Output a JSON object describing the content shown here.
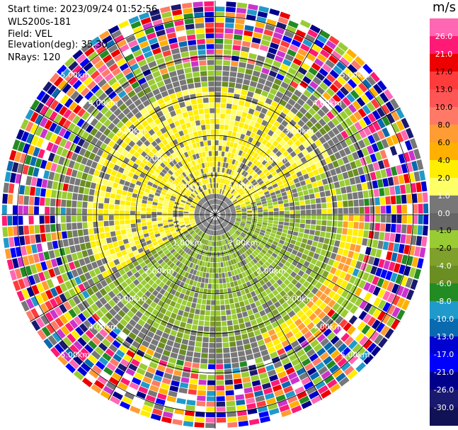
{
  "header": {
    "start_time": "Start time: 2023/09/24 01:52:56",
    "instrument": "WLS200s-181",
    "field": "Field: VEL",
    "elevation": "Elevation(deg): 35.30",
    "nrays": "NRays: 120"
  },
  "ranges": {
    "ring_labels": [
      "1.00km",
      "2.00km",
      "3.00km",
      "4.00km",
      "5.00km"
    ],
    "ring_count": 5
  },
  "colorbar": {
    "unit": "m/s",
    "labels": [
      "26.0",
      "21.0",
      "17.0",
      "13.0",
      "10.0",
      "8.0",
      "6.0",
      "4.0",
      "2.0",
      "1.0",
      "0.0",
      "-1.0",
      "-2.0",
      "-4.0",
      "-6.0",
      "-8.0",
      "-10.0",
      "-13.0",
      "-17.0",
      "-21.0",
      "-26.0",
      "-30.0"
    ],
    "colors": [
      "#ff66b3",
      "#ff1a75",
      "#ee0000",
      "#ff3b3b",
      "#ff5555",
      "#ff7a66",
      "#ff9c33",
      "#ffb000",
      "#ffee00",
      "#ffff66",
      "#777777",
      "#666666",
      "#99cc33",
      "#7fa02a",
      "#6b8e23",
      "#228b22",
      "#1f9acb",
      "#0a6ab0",
      "#0000d0",
      "#0000ff",
      "#00008b",
      "#191970",
      "#111155"
    ]
  },
  "icons": {
    "plot": "radar-ppi-icon"
  }
}
